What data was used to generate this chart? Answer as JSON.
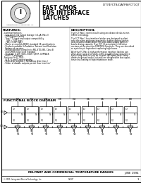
{
  "bg_color": "#ffffff",
  "border_color": "#000000",
  "header": {
    "logo_text": "Integrated Device Technology, Inc.",
    "title_line1": "FAST CMOS",
    "title_line2": "BUS INTERFACE",
    "title_line3": "LATCHES",
    "part_number": "IDT74FCT841ATPB/FCT1QT"
  },
  "features_title": "FEATURES:",
  "features": [
    "- Common features:",
    "  - Low input and output leakage (<1μA (Max.))",
    "  - CMOS power levels",
    "  - True TTL input and output compatibility",
    "    - VIH = 2.0V (typ.)",
    "    - VIL = 0.8V (typ.)",
    "  - Meets or exceeds JEDEC standard 18 specifications",
    "  - Product available in Radiation Tolerant and Radiation",
    "    Enhanced versions",
    "  - Military product complies to MIL-STD-883, Class B",
    "    and CMOS noise level standard",
    "  - Available in DIP, SOIC, SSOP, QSOP, CERPACK",
    "    and LCC packages",
    "- Features for FCT841:",
    "  - A, B, 8, and 9-speed grades",
    "  - High-drive outputs (- 64mA bus drive max.)",
    "  - Power of disable outputs permit 'bus insertion'"
  ],
  "description_title": "DESCRIPTION:",
  "description": [
    "The FCT Max 1 series is built using an advanced sub-micron",
    "CMOS technology.",
    "",
    "The FCT Max 1 bus interface latches are designed to elimi-",
    "nate the extra packages required to buffer existing latches",
    "and provides double-width (10 wide address/data paths in",
    "buses driving capacity. True FCT (if prescripted), full drive",
    "versions at the previous FCBCMOS functions. They are described",
    "as a pin for pin equivalent replacing high buses.",
    "",
    "All of the FC Max 1 high-performance interface latches can",
    "drive large capacitive loads, while providing low-capacitance",
    "bus driving short-circuits on outputs. All inputs have clamp",
    "diodes to ground and all outputs are designed for low-capaci-",
    "tance bus loading in high impedance state."
  ],
  "fbd_title": "FUNCTIONAL BLOCK DIAGRAM",
  "bottom_text": "MILITARY AND COMMERCIAL TEMPERATURE RANGES",
  "bottom_right": "JUNE 1994",
  "page_num": "1",
  "num_latches": 9,
  "input_labels": [
    "D0",
    "D1",
    "D2",
    "D3",
    "D4",
    "D5",
    "D6",
    "D7",
    "D8"
  ],
  "output_labels": [
    "Y0",
    "Y1",
    "Y2",
    "Y3",
    "Y4",
    "Y5",
    "Y6",
    "Y7",
    "Y8"
  ]
}
